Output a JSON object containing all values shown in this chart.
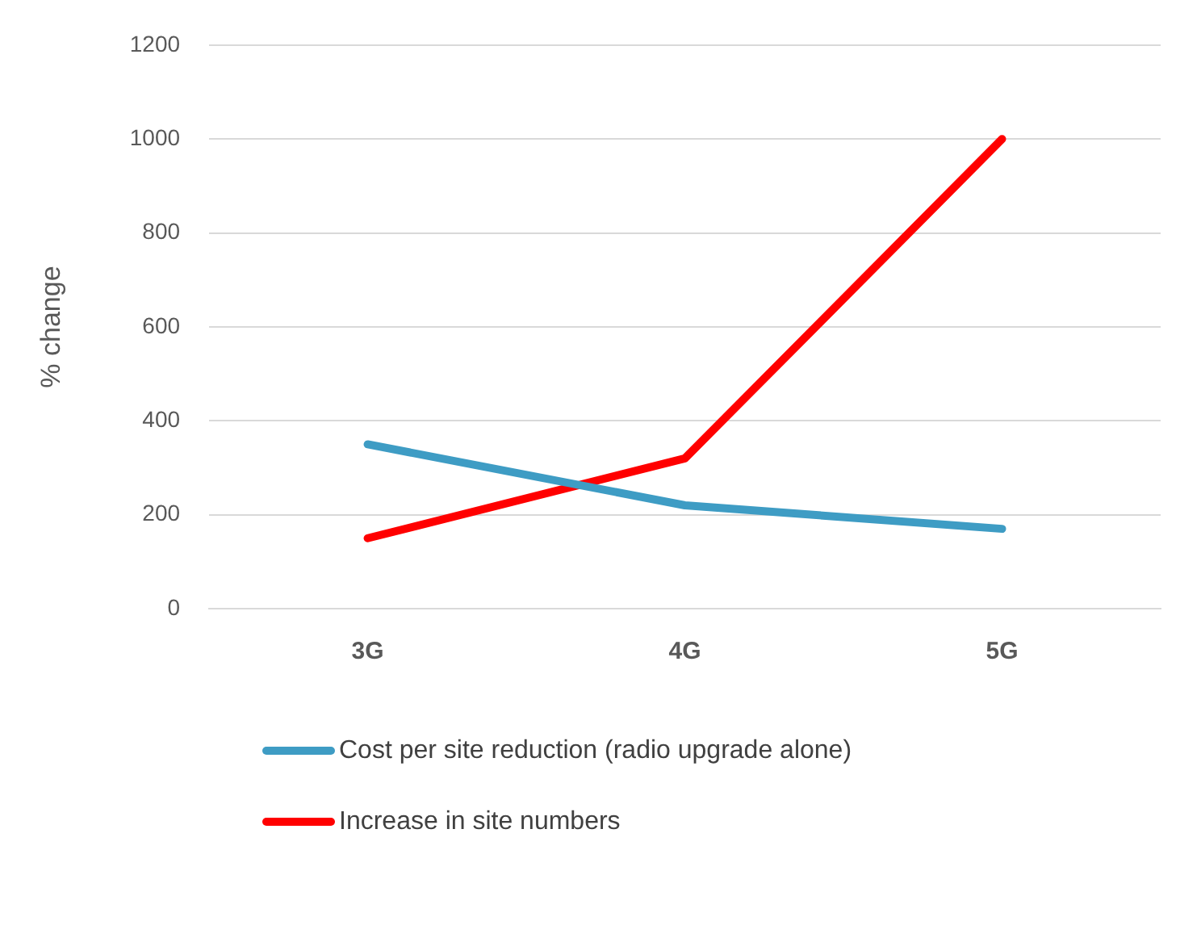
{
  "chart_data": {
    "type": "line",
    "ylabel": "% change",
    "categories": [
      "3G",
      "4G",
      "5G"
    ],
    "series": [
      {
        "name": "Cost per site reduction (radio upgrade alone)",
        "color": "#3e9cc4",
        "values": [
          350,
          220,
          170
        ]
      },
      {
        "name": "Increase in site numbers",
        "color": "#ff0000",
        "values": [
          150,
          320,
          1000
        ]
      }
    ],
    "ylim": [
      0,
      1200
    ],
    "yticks": [
      0,
      200,
      400,
      600,
      800,
      1000,
      1200
    ],
    "grid": "y",
    "legend": "bottom",
    "marker": "none",
    "line_style": "solid"
  }
}
